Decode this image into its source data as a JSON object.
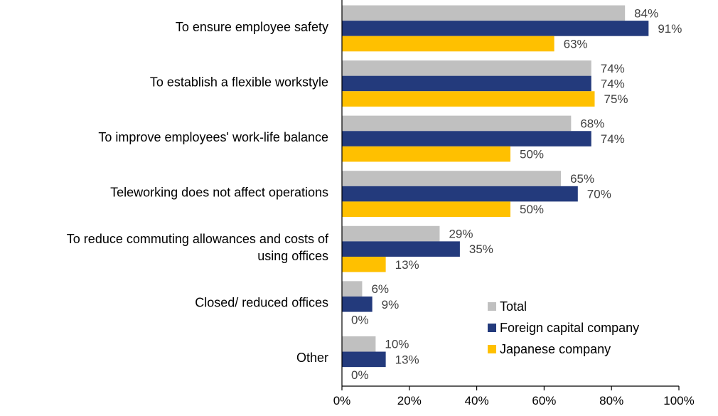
{
  "chart_data": {
    "type": "bar",
    "orientation": "horizontal",
    "categories": [
      "To ensure employee safety",
      "To establish a flexible workstyle",
      "To improve employees' work-life balance",
      "Teleworking does not affect operations",
      [
        "To reduce commuting allowances and costs of",
        "using offices"
      ],
      "Closed/ reduced offices",
      "Other"
    ],
    "series": [
      {
        "name": "Total",
        "color": "#c0c0c0",
        "values": [
          84,
          74,
          68,
          65,
          29,
          6,
          10
        ]
      },
      {
        "name": "Foreign capital company",
        "color": "#233a7c",
        "values": [
          91,
          74,
          74,
          70,
          35,
          9,
          13
        ]
      },
      {
        "name": "Japanese company",
        "color": "#ffc000",
        "values": [
          63,
          75,
          50,
          50,
          13,
          0,
          0
        ]
      }
    ],
    "value_suffix": "%",
    "xlim": [
      0,
      100
    ],
    "xticks": [
      "0%",
      "20%",
      "40%",
      "60%",
      "80%",
      "100%"
    ],
    "grid": false,
    "legend_position": "bottom-right-inside"
  }
}
